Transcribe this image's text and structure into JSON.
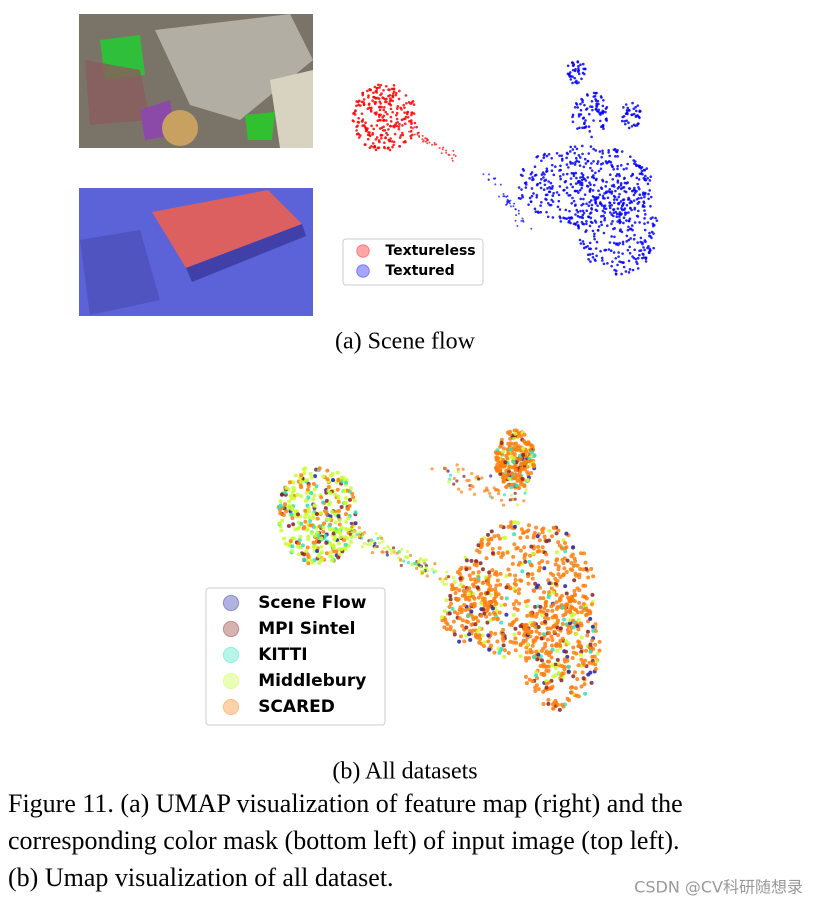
{
  "figure_a": {
    "caption": "(a) Scene flow",
    "legend": [
      {
        "name": "Textureless",
        "color": "#ff0000"
      },
      {
        "name": "Textured",
        "color": "#0000ff"
      }
    ]
  },
  "figure_b": {
    "caption": "(b) All datasets",
    "legend": [
      {
        "name": "Scene Flow",
        "color": "#2222aa"
      },
      {
        "name": "MPI Sintel",
        "color": "#8b2222"
      },
      {
        "name": "KITTI",
        "color": "#30e0c0"
      },
      {
        "name": "Middlebury",
        "color": "#c8ff30"
      },
      {
        "name": "SCARED",
        "color": "#ff7f0e"
      }
    ]
  },
  "figure_caption": [
    "Figure 11. (a) UMAP visualization of feature map (right) and the",
    "corresponding color mask (bottom left) of input image (top left).",
    "(b) Umap visualization of all dataset."
  ],
  "watermark": "CSDN @CV科研随想录"
}
